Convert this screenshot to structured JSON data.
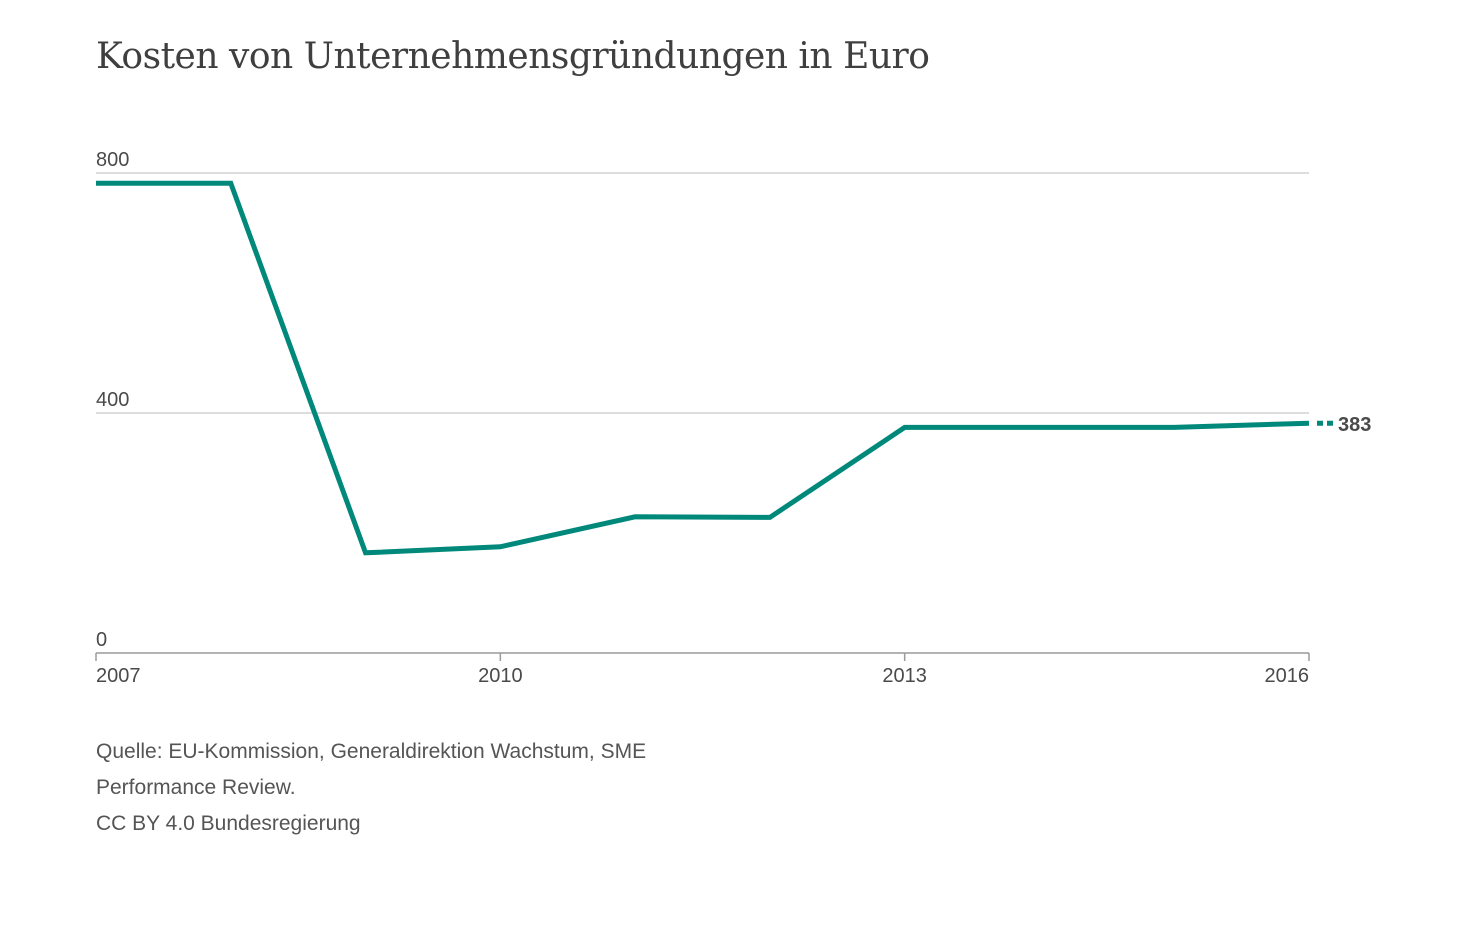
{
  "chart_data": {
    "type": "line",
    "title": "Kosten von Unternehmensgründungen in Euro",
    "xlabel": "",
    "ylabel": "",
    "x": [
      2007,
      2008,
      2009,
      2010,
      2011,
      2012,
      2013,
      2014,
      2015,
      2016
    ],
    "series": [
      {
        "values": [
          783,
          783,
          167,
          177,
          227,
          226,
          376,
          376,
          376,
          383
        ],
        "color": "#00897b"
      }
    ],
    "xlim": [
      2007,
      2016
    ],
    "ylim": [
      0,
      800
    ],
    "x_ticks": [
      {
        "value": 2007,
        "label": "2007"
      },
      {
        "value": 2010,
        "label": "2010"
      },
      {
        "value": 2013,
        "label": "2013"
      },
      {
        "value": 2016,
        "label": "2016"
      }
    ],
    "y_ticks": [
      {
        "value": 0,
        "label": "0"
      },
      {
        "value": 400,
        "label": "400"
      },
      {
        "value": 800,
        "label": "800"
      }
    ],
    "grid": "horizontal",
    "end_label": "383"
  },
  "source": {
    "line1": "Quelle: EU-Kommission, Generaldirektion Wachstum, SME",
    "line2": "Performance Review.",
    "line3": "CC BY 4.0 Bundesregierung"
  }
}
